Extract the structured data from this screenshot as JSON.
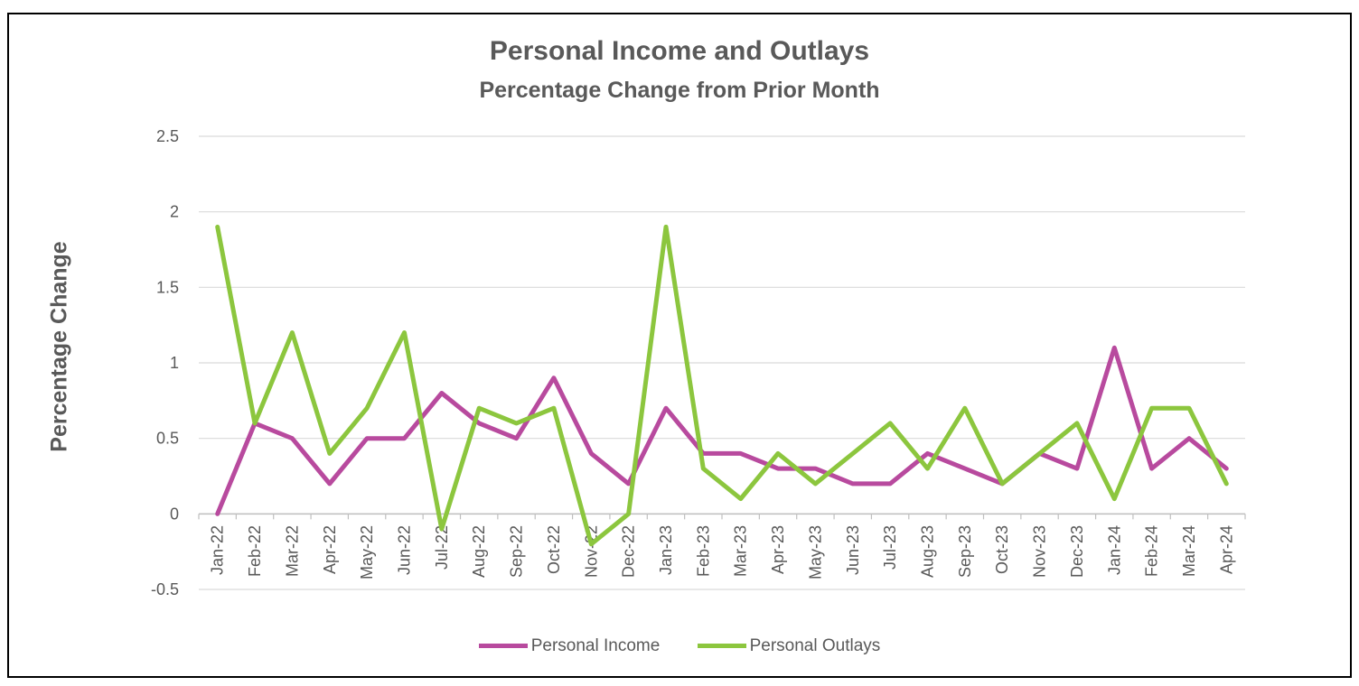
{
  "chart_data": {
    "type": "line",
    "title": "Personal Income and Outlays",
    "subtitle": "Percentage Change from Prior Month",
    "xlabel": "",
    "ylabel": "Percentage Change",
    "ylim": [
      -0.5,
      2.5
    ],
    "yticks": [
      "-0.5",
      "0",
      "0.5",
      "1",
      "1.5",
      "2",
      "2.5"
    ],
    "grid": true,
    "legend_position": "bottom",
    "categories": [
      "Jan-22",
      "Feb-22",
      "Mar-22",
      "Apr-22",
      "May-22",
      "Jun-22",
      "Jul-22",
      "Aug-22",
      "Sep-22",
      "Oct-22",
      "Nov-22",
      "Dec-22",
      "Jan-23",
      "Feb-23",
      "Mar-23",
      "Apr-23",
      "May-23",
      "Jun-23",
      "Jul-23",
      "Aug-23",
      "Sep-23",
      "Oct-23",
      "Nov-23",
      "Dec-23",
      "Jan-24",
      "Feb-24",
      "Mar-24",
      "Apr-24"
    ],
    "series": [
      {
        "name": "Personal Income",
        "color": "#B84A9E",
        "values": [
          0.0,
          0.6,
          0.5,
          0.2,
          0.5,
          0.5,
          0.8,
          0.6,
          0.5,
          0.9,
          0.4,
          0.2,
          0.7,
          0.4,
          0.4,
          0.3,
          0.3,
          0.2,
          0.2,
          0.4,
          0.3,
          0.2,
          0.4,
          0.3,
          1.1,
          0.3,
          0.5,
          0.3
        ]
      },
      {
        "name": "Personal Outlays",
        "color": "#8CC63E",
        "values": [
          1.9,
          0.6,
          1.2,
          0.4,
          0.7,
          1.2,
          -0.1,
          0.7,
          0.6,
          0.7,
          -0.2,
          0.0,
          1.9,
          0.3,
          0.1,
          0.4,
          0.2,
          0.4,
          0.6,
          0.3,
          0.7,
          0.2,
          0.4,
          0.6,
          0.1,
          0.7,
          0.7,
          0.2
        ]
      }
    ]
  }
}
